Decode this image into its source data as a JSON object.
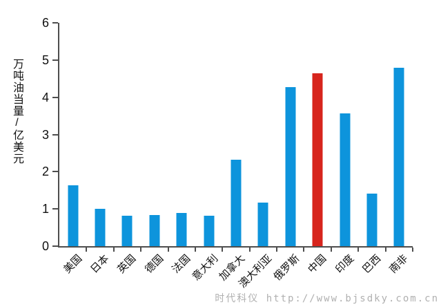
{
  "chart_data": {
    "type": "bar",
    "title": "",
    "xlabel": "",
    "ylabel": "万吨油当量/亿美元",
    "categories": [
      "美国",
      "日本",
      "英国",
      "德国",
      "法国",
      "意大利",
      "加拿大",
      "澳大利亚",
      "俄罗斯",
      "中国",
      "印度",
      "巴西",
      "南非"
    ],
    "values": [
      1.64,
      1.01,
      0.82,
      0.84,
      0.89,
      0.81,
      2.33,
      1.17,
      4.28,
      4.65,
      3.56,
      1.42,
      4.79
    ],
    "ylim": [
      0,
      6
    ],
    "yticks": [
      0,
      1,
      2,
      3,
      4,
      5,
      6
    ],
    "grid": false,
    "legend_position": "none",
    "bar_color": "#0d94dc",
    "highlight_category": "中国",
    "highlight_color": "#d7251d",
    "axis_color": "#4d4d4d",
    "tick_label_color": "#111111"
  },
  "watermark": {
    "text": "时代科仪 http://www.bjsdky.com.cn",
    "color": "#b0b0b0"
  }
}
